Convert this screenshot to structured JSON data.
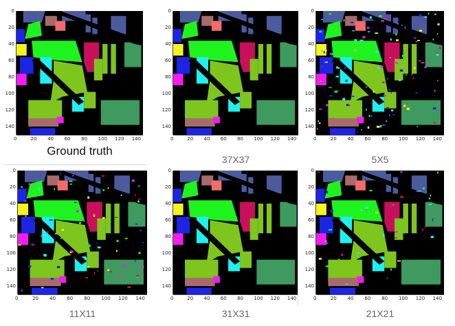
{
  "figure": {
    "panels": [
      {
        "id": "ground-truth",
        "caption": "Ground truth"
      },
      {
        "id": "p37",
        "caption": "37X37"
      },
      {
        "id": "p5",
        "caption": "5X5"
      },
      {
        "id": "p11",
        "caption": "11X11"
      },
      {
        "id": "p31",
        "caption": "31X31"
      },
      {
        "id": "p21",
        "caption": "21X21"
      }
    ],
    "x_ticks": [
      "0",
      "20",
      "40",
      "60",
      "80",
      "100",
      "120",
      "140"
    ],
    "y_ticks": [
      "0",
      "20",
      "40",
      "60",
      "80",
      "100",
      "120",
      "140"
    ]
  },
  "colors": {
    "background": "#000000",
    "light_green": "#7ec51e",
    "bright_green": "#1ff31f",
    "crimson": "#c8105a",
    "cyan": "#1ef0f0",
    "blue": "#1c25e6",
    "yellow": "#f5f51c",
    "magenta": "#f51cf0",
    "gray_blue": "#4b5b9e",
    "salmon": "#f36b6b",
    "sea_green": "#3e9a5e",
    "dusty_rose": "#a86a6a"
  }
}
